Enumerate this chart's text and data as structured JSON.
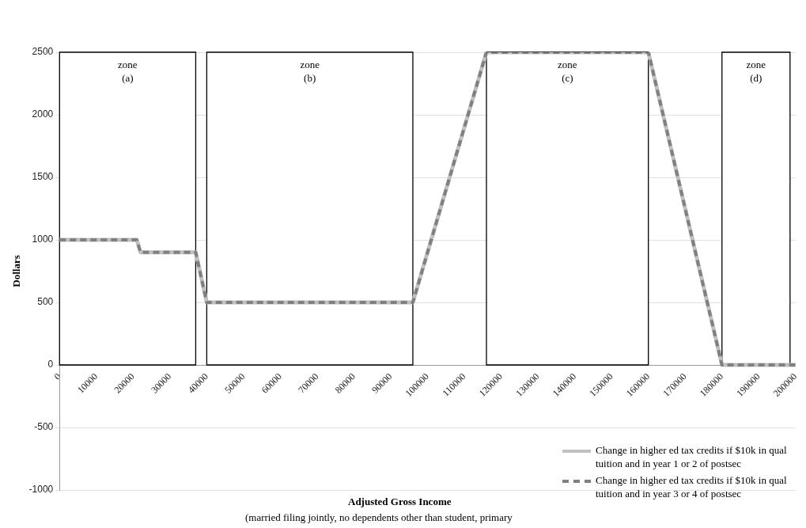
{
  "chart_data": {
    "type": "line",
    "xlabel": "Adjusted Gross Income",
    "ylabel": "Dollars",
    "annotations": [
      "(married filing jointly, no dependents  other than student, primary"
    ],
    "x": [
      0,
      21000,
      22000,
      37000,
      40000,
      96000,
      116000,
      160000,
      180000,
      200000
    ],
    "series": [
      {
        "name": "Change in higher ed tax credits if $10k in qual tuition and in year 1 or 2 of postsec",
        "color": "#c0c0c0",
        "line_style": "solid",
        "values": [
          1000,
          1000,
          900,
          900,
          500,
          500,
          2500,
          2500,
          0,
          0
        ]
      },
      {
        "name": "Change in higher ed tax credits if $10k in qual tuition and in year 3 or 4 of postsec",
        "color": "#808080",
        "line_style": "dashed",
        "values": [
          1000,
          1000,
          900,
          900,
          500,
          500,
          2500,
          2500,
          0,
          0
        ]
      }
    ],
    "xlim": [
      0,
      200000
    ],
    "xticks": [
      0,
      10000,
      20000,
      30000,
      40000,
      50000,
      60000,
      70000,
      80000,
      90000,
      100000,
      110000,
      120000,
      130000,
      140000,
      150000,
      160000,
      170000,
      180000,
      190000,
      200000
    ],
    "ylim": [
      -1000,
      2500
    ],
    "yticks": [
      -1000,
      -500,
      0,
      500,
      1000,
      1500,
      2000,
      2500
    ],
    "bands": [
      {
        "axis": "x",
        "from": 0,
        "to": 37000,
        "label": "zone\n(a)",
        "color": "#ffffff"
      },
      {
        "axis": "x",
        "from": 40000,
        "to": 96000,
        "label": "zone\n(b)",
        "color": "#ffffff"
      },
      {
        "axis": "x",
        "from": 116000,
        "to": 160000,
        "label": "zone\n(c)",
        "color": "#ffffff"
      },
      {
        "axis": "x",
        "from": 180000,
        "to": 198500,
        "label": "zone\n(d)",
        "color": "#ffffff"
      }
    ],
    "grid": "y",
    "legend": "bottom right",
    "marker": "none"
  }
}
